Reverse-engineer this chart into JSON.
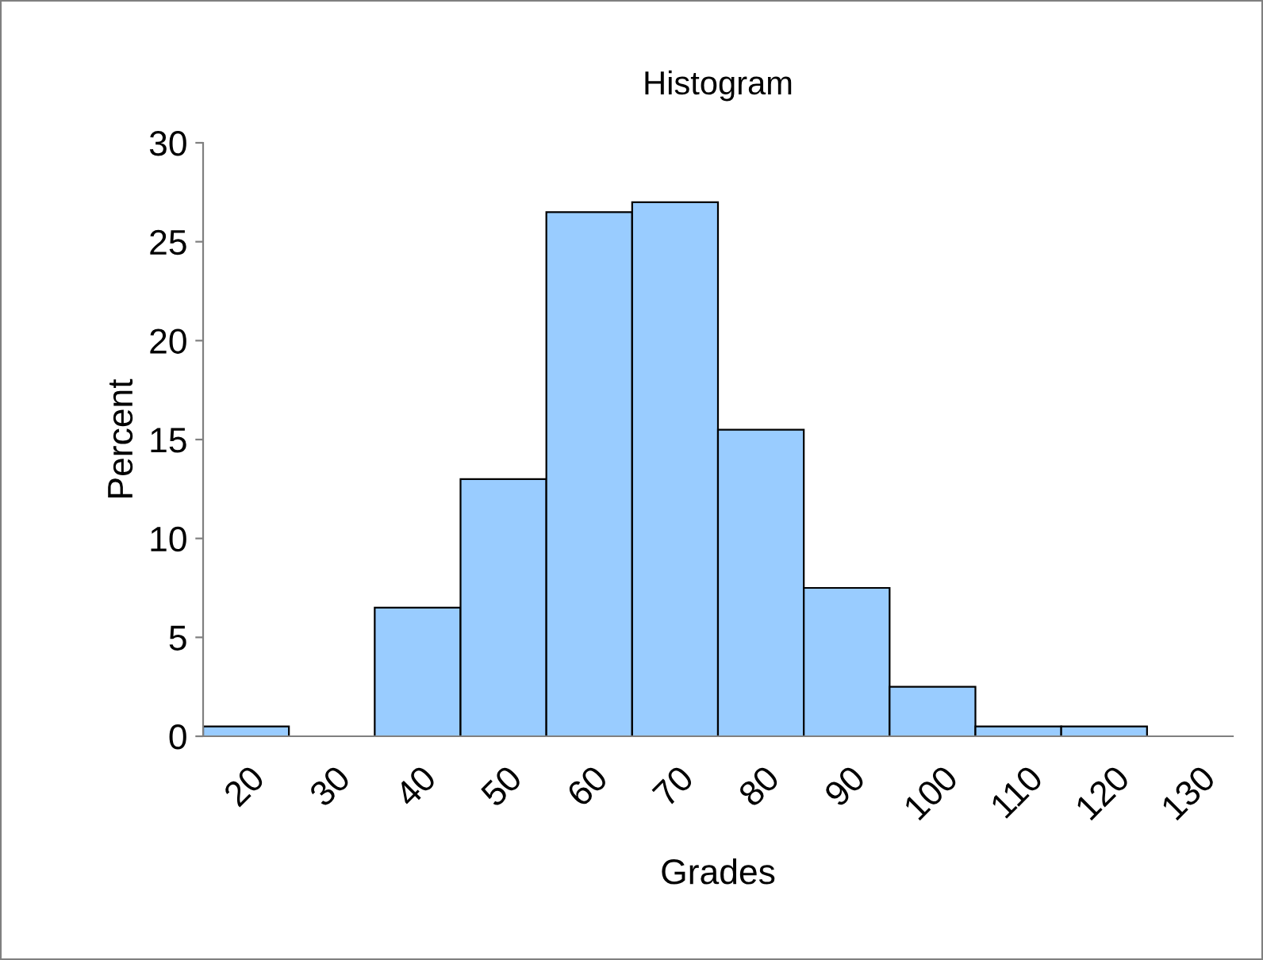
{
  "chart_data": {
    "type": "bar",
    "title": "Histogram",
    "xlabel": "Grades",
    "ylabel": "Percent",
    "categories": [
      "20",
      "30",
      "40",
      "50",
      "60",
      "70",
      "80",
      "90",
      "100",
      "110",
      "120",
      "130"
    ],
    "values": [
      0.5,
      0,
      6.5,
      13,
      26.5,
      27,
      15.5,
      7.5,
      2.5,
      0.5,
      0.5,
      0
    ],
    "color": "#99ccff",
    "ylim": [
      0,
      30
    ],
    "yticks": [
      0,
      5,
      10,
      15,
      20,
      25,
      30
    ],
    "grid": false,
    "legend": false
  }
}
